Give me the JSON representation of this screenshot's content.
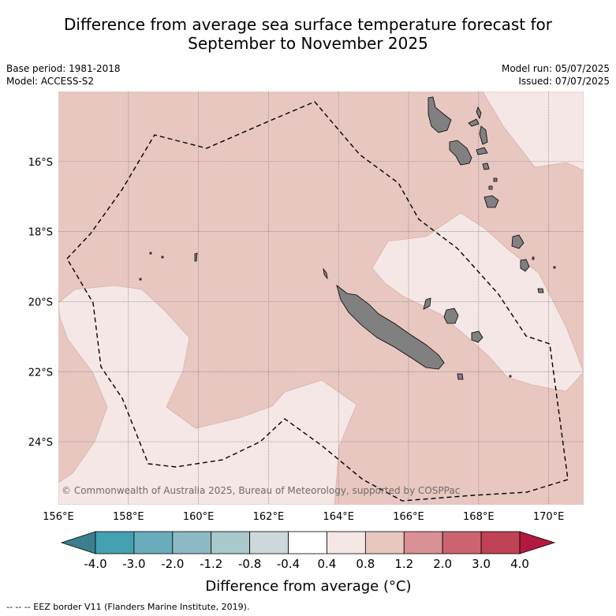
{
  "title_line1": "Difference from average sea surface temperature forecast for",
  "title_line2": "September to November 2025",
  "base_period": "Base period: 1981-2018",
  "model": "Model: ACCESS-S2",
  "model_run": "Model run: 05/07/2025",
  "issued": "Issued: 07/07/2025",
  "credit": "© Commonwealth of Australia 2025, Bureau of Meteorology, supported by COSPPac",
  "footnote": "--  --  -- EEZ border V11 (Flanders Marine Institute, 2019).",
  "map_extent": {
    "lon_min": 156,
    "lon_max": 171,
    "lat_min": -25.8,
    "lat_max": -14.0
  },
  "lon_ticks": [
    {
      "value": 156,
      "label": "156°E"
    },
    {
      "value": 158,
      "label": "158°E"
    },
    {
      "value": 160,
      "label": "160°E"
    },
    {
      "value": 162,
      "label": "162°E"
    },
    {
      "value": 164,
      "label": "164°E"
    },
    {
      "value": 166,
      "label": "166°E"
    },
    {
      "value": 168,
      "label": "168°E"
    },
    {
      "value": 170,
      "label": "170°E"
    }
  ],
  "lat_ticks": [
    {
      "value": -16,
      "label": "16°S"
    },
    {
      "value": -18,
      "label": "18°S"
    },
    {
      "value": -20,
      "label": "20°S"
    },
    {
      "value": -22,
      "label": "22°S"
    },
    {
      "value": -24,
      "label": "24°S"
    }
  ],
  "colors": {
    "anomaly_0_4_to_0_8": "#f5e7e5",
    "anomaly_0_8_to_1_2": "#e8c7c1",
    "land": "#808080",
    "gridline": "#7a7a7a",
    "eez": "#000000"
  },
  "colorbar": {
    "title": "Difference from average (°C)",
    "tick_labels": [
      "-4.0",
      "-3.0",
      "-2.0",
      "-1.2",
      "-0.8",
      "-0.4",
      "0.4",
      "0.8",
      "1.2",
      "2.0",
      "3.0",
      "4.0"
    ],
    "under_color": "#3c7f8c",
    "over_color": "#b3193f",
    "bin_colors": [
      "#43a1b0",
      "#69adbc",
      "#8bb9c4",
      "#a9c8cb",
      "#cdd8db",
      "#ffffff",
      "#f5e7e5",
      "#e8c7c1",
      "#d88f95",
      "#cb646f",
      "#bf4354"
    ]
  }
}
